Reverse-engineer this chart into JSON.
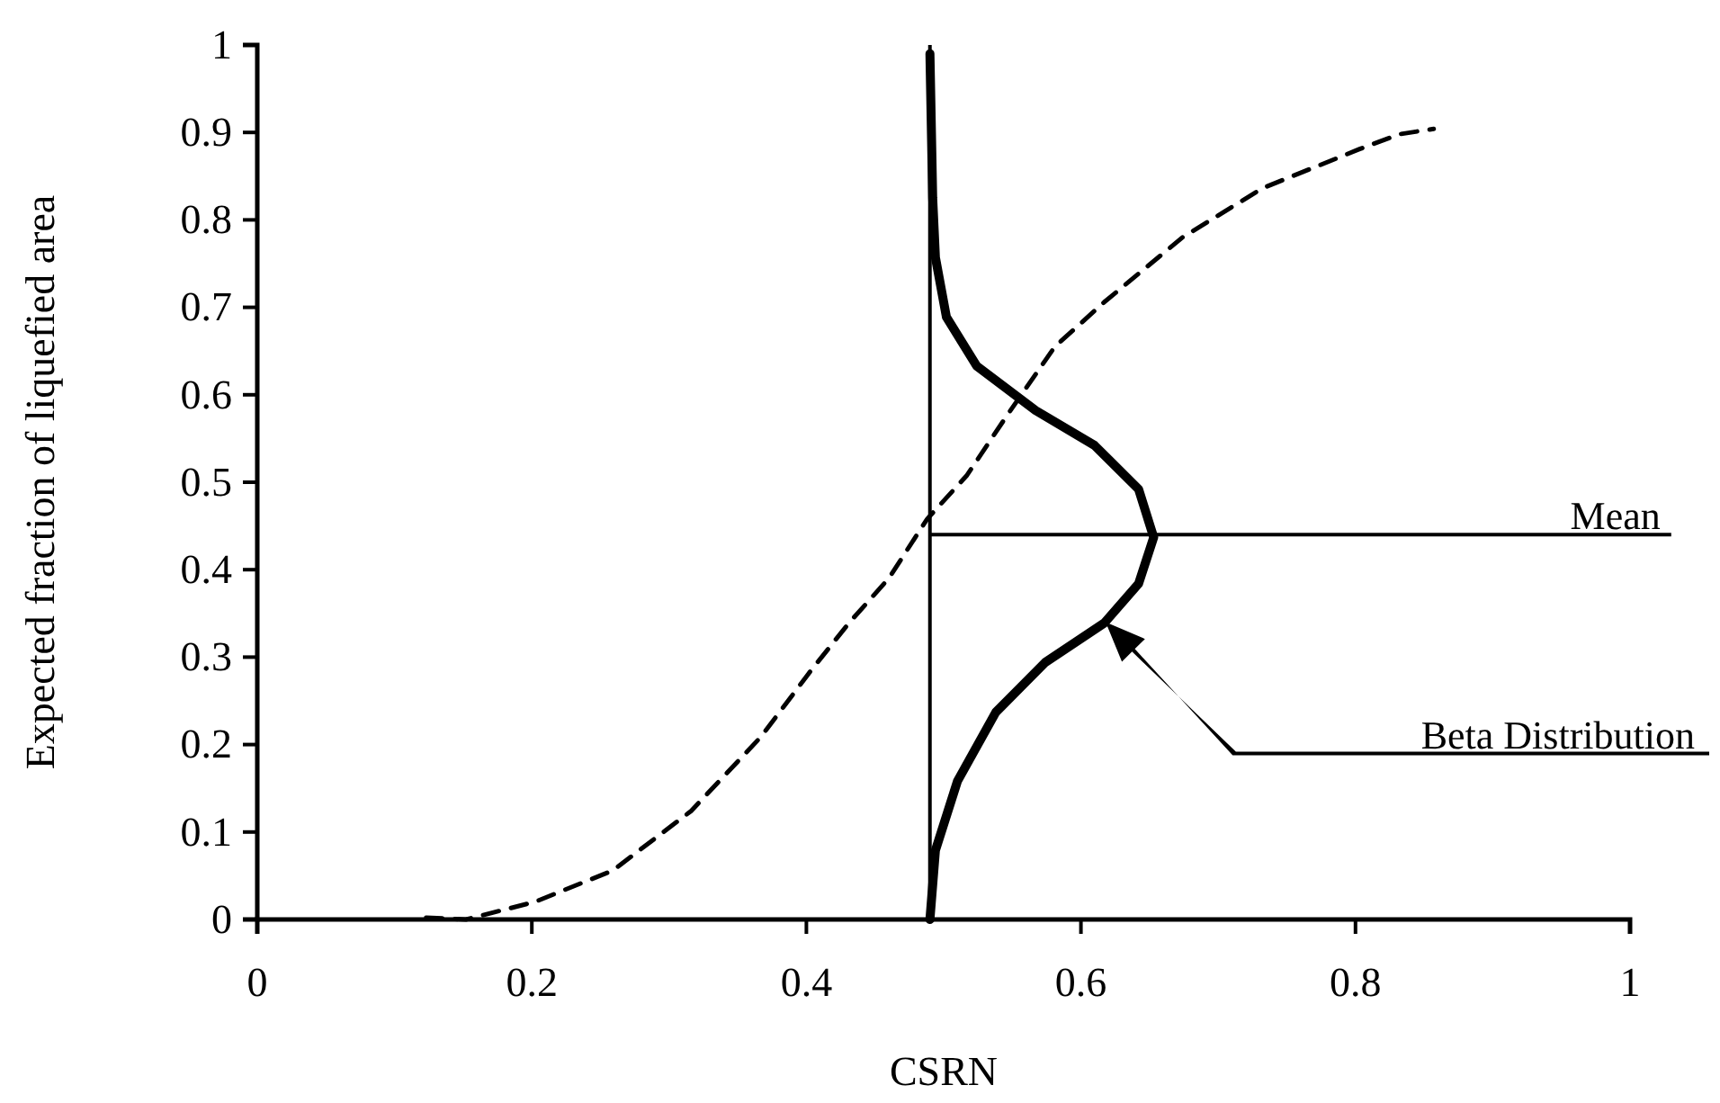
{
  "chart_data": {
    "type": "line",
    "xlabel": "CSRN",
    "ylabel": "Expected fraction of liquefied area",
    "xlim": [
      0,
      1
    ],
    "ylim": [
      0,
      1
    ],
    "xticks": [
      0,
      0.2,
      0.4,
      0.6,
      0.8,
      1
    ],
    "yticks": [
      0,
      0.1,
      0.2,
      0.3,
      0.4,
      0.5,
      0.6,
      0.7,
      0.8,
      0.9,
      1
    ],
    "grid": false,
    "marker": "none",
    "series": [
      {
        "color": "#000000",
        "line_style": "dashed",
        "x": [
          0.123,
          0.152,
          0.202,
          0.259,
          0.316,
          0.367,
          0.402,
          0.431,
          0.46,
          0.488,
          0.517,
          0.546,
          0.581,
          0.617,
          0.674,
          0.732,
          0.803,
          0.832,
          0.857
        ],
        "values": [
          0.002,
          0,
          0.02,
          0.056,
          0.124,
          0.209,
          0.282,
          0.339,
          0.39,
          0.458,
          0.508,
          0.576,
          0.655,
          0.706,
          0.78,
          0.836,
          0.881,
          0.898,
          0.904
        ]
      },
      {
        "color": "#000000",
        "line_style": "solid",
        "x": [
          0.49,
          0.494,
          0.51,
          0.538,
          0.574,
          0.617,
          0.642,
          0.653,
          0.642,
          0.61,
          0.567,
          0.524,
          0.502,
          0.494,
          0.492,
          0.49
        ],
        "values": [
          0,
          0.079,
          0.158,
          0.237,
          0.294,
          0.339,
          0.384,
          0.437,
          0.492,
          0.542,
          0.582,
          0.633,
          0.689,
          0.757,
          0.825,
          0.99
        ]
      }
    ],
    "ref_lines": [
      {
        "axis": "x",
        "value": 0.49
      },
      {
        "axis": "y",
        "value": 0.44,
        "label": "Mean"
      }
    ],
    "annotations": [
      "Beta Distribution"
    ]
  }
}
